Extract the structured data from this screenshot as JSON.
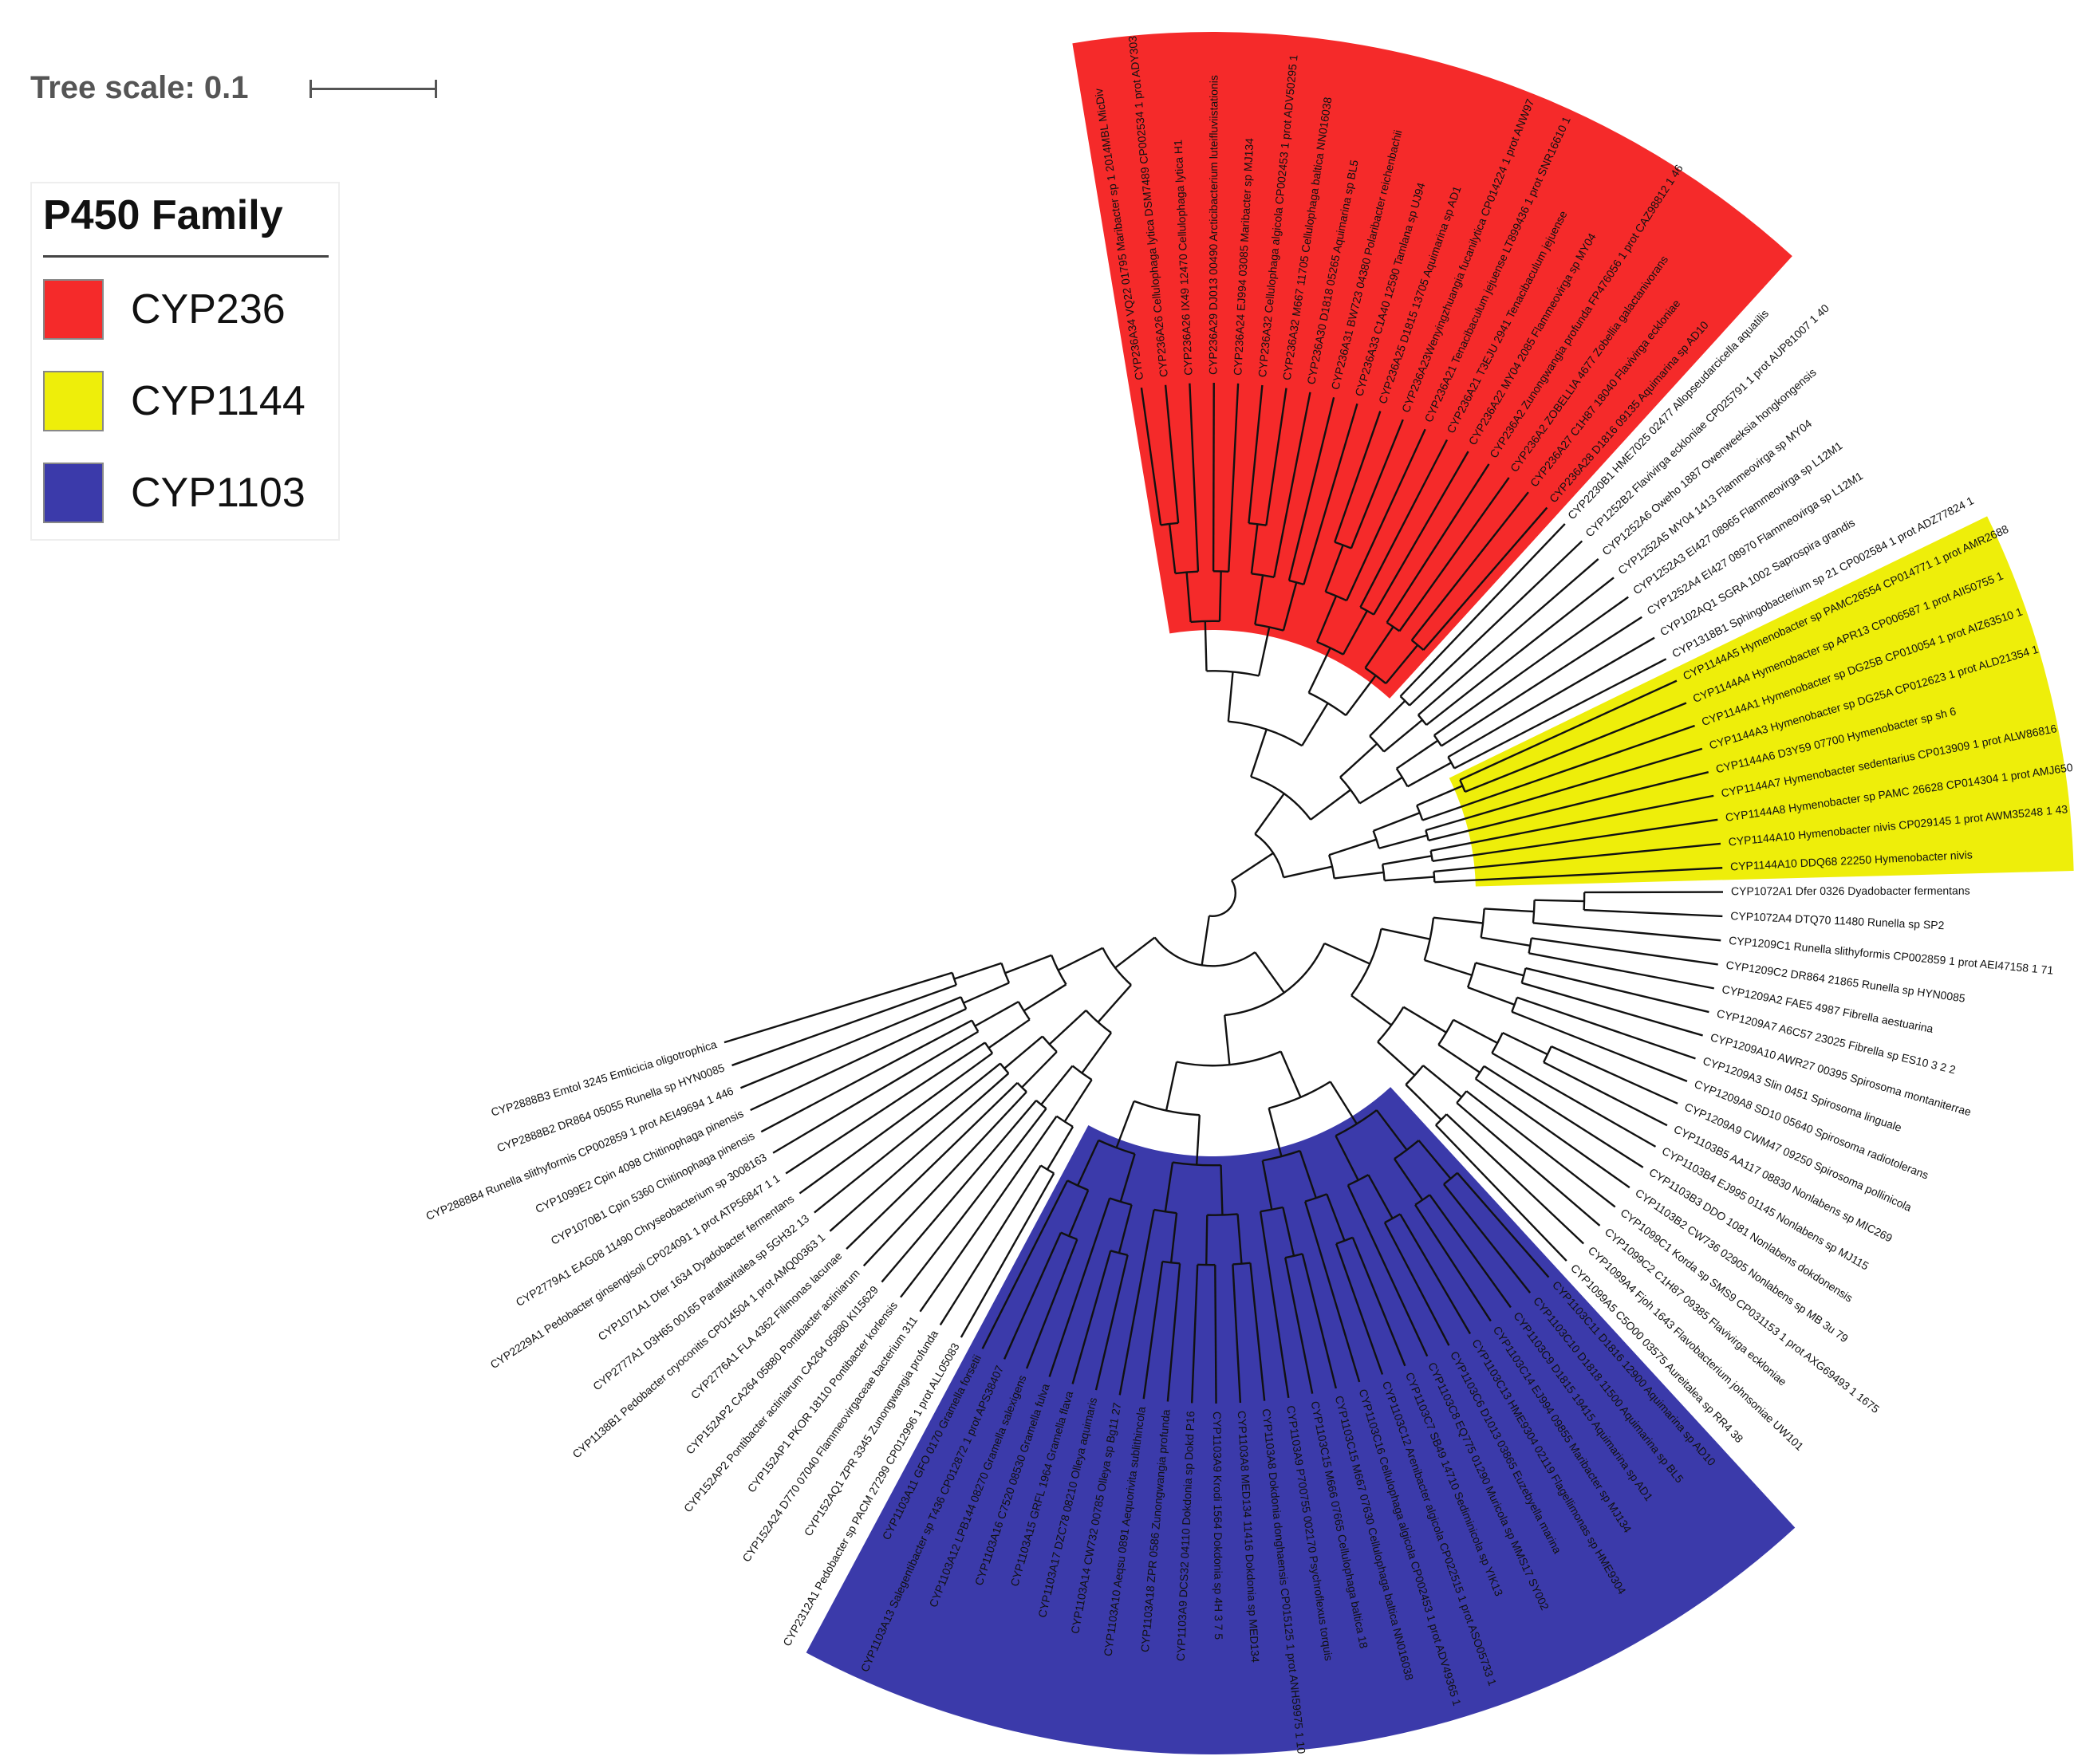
{
  "tree_scale": {
    "label": "Tree scale: 0.1"
  },
  "legend": {
    "title": "P450 Family",
    "items": [
      {
        "label": "CYP236",
        "color": "#f52a2a"
      },
      {
        "label": "CYP1144",
        "color": "#eeee0a"
      },
      {
        "label": "CYP1103",
        "color": "#3b3aaa"
      }
    ]
  },
  "tree": {
    "clades": [
      {
        "family": "CYP236",
        "color": "#f52a2a",
        "leaves": [
          "CYP236A34 VQ22 01795 Maribacter sp 1 2014MBL MicDiv",
          "CYP236A26 Cellulophaga lytica DSM7489 CP002534 1 prot ADY303",
          "CYP236A26 IX49 12470 Cellulophaga lytica H1",
          "CYP236A29 DJ013 00490 Arcticibacterium luteifluviistationis",
          "CYP236A24 EJ994 03085 Maribacter sp MJ134",
          "CYP236A32 Cellulophaga algicola CP002453 1 prot ADV50295 1",
          "CYP236A32 M667 11705 Cellulophaga baltica NN016038",
          "CYP236A30 D1818 05265 Aquimarina sp BL5",
          "CYP236A31 BW723 04380 Polaribacter reichenbachii",
          "CYP236A33 C1A40 12590 Tamlana sp UJ94",
          "CYP236A25 D1815 13705 Aquimarina sp AD1",
          "CYP236A23Wenyingzhuangia fucanilytica CP014224 1 prot ANW97",
          "CYP236A21 Tenacibaculum jejuense LT899436 1 prot SNR16610 1",
          "CYP236A21 T3EJU 2941 Tenacibaculum jejuense",
          "CYP236A22 MY04 2085 Flammeovirga sp MY04",
          "CYP236A2 Zunongwangia profunda FP476056 1 prot CAZ98812 1 46",
          "CYP236A2 ZOBELLIA 4677 Zobellia galactanivorans",
          "CYP236A27 C1H87 18040 Flavivirga eckloniae",
          "CYP236A28 D1816 09135 Aquimarina sp AD10"
        ]
      },
      {
        "family": "",
        "color": "",
        "leaves": [
          "CYP2230B1 HME7025 02477 Allopseudarcicella aquatilis",
          "CYP1252B2 Flavivirga eckloniae CP025791 1 prot AUP81007 1 40",
          "CYP1252A6 Oweho 1887 Owenweeksia hongkongensis",
          "CYP1252A5 MY04 1413 Flammeovirga sp MY04",
          "CYP1252A3 EI427 08965 Flammeovirga sp L12M1",
          "CYP1252A4 EI427 08970 Flammeovirga sp L12M1",
          "CYP102AQ1 SGRA 1002 Saprospira grandis",
          "CYP1318B1 Sphingobacterium sp 21 CP002584 1 prot ADZ77824 1"
        ]
      },
      {
        "family": "CYP1144",
        "color": "#eeee0a",
        "leaves": [
          "CYP1144A5 Hymenobacter sp PAMC26554 CP014771 1 prot AMR2688",
          "CYP1144A4 Hymenobacter sp APR13 CP006587 1 prot AII50755 1",
          "CYP1144A1 Hymenobacter sp DG25B CP010054 1 prot AIZ63510 1",
          "CYP1144A3 Hymenobacter sp DG25A CP012623 1 prot ALD21354 1",
          "CYP1144A6 D3Y59 07700 Hymenobacter sp sh 6",
          "CYP1144A7 Hymenobacter sedentarius CP013909 1 prot ALW86816",
          "CYP1144A8 Hymenobacter sp PAMC 26628 CP014304 1 prot AMJ650",
          "CYP1144A10 Hymenobacter nivis CP029145 1 prot AWM35248 1 43",
          "CYP1144A10 DDQ68 22250 Hymenobacter nivis"
        ]
      },
      {
        "family": "",
        "color": "",
        "leaves": [
          "CYP1072A1 Dfer 0326 Dyadobacter fermentans",
          "CYP1072A4 DTQ70 11480 Runella sp SP2",
          "CYP1209C1 Runella slithyformis CP002859 1 prot AEI47158 1 71",
          "CYP1209C2 DR864 21865 Runella sp HYN0085",
          "CYP1209A2 FAE5 4987 Fibrella aestuarina",
          "CYP1209A7 A6C57 23025 Fibrella sp ES10 3 2 2",
          "CYP1209A10 AWR27 00395 Spirosoma montaniterrae",
          "CYP1209A3 Slin 0451 Spirosoma linguale",
          "CYP1209A8 SD10 05640 Spirosoma radiotolerans",
          "CYP1209A9 CWM47 09250 Spirosoma pollinicola",
          "CYP1103B5 AA117 08830 Nonlabens sp MIC269",
          "CYP1103B4 EJ995 01145 Nonlabens sp MJ115",
          "CYP1103B3 DDO 1081 Nonlabens dokdonensis",
          "CYP1103B2 CW736 02905 Nonlabens sp MB 3u 79",
          "CYP1099C1 Korda sp SMS9 CP031153 1 prot AXG69493 1 1675",
          "CYP1099C2 C1H87 09385 Flavivirga eckloniae",
          "CYP1099A4 Fjoh 1643 Flavobacterium johnsoniae UW101",
          "CYP1099A5 C5O00 03575 Aureitalea sp RR4 38"
        ]
      },
      {
        "family": "CYP1103",
        "color": "#3b3aaa",
        "leaves": [
          "CYP1103C11 D1816 12900 Aquimarina sp AD10",
          "CYP1103C10 D1818 11500 Aquimarina sp BL5",
          "CYP1103C9 D1815 19415 Aquimarina sp AD1",
          "CYP1103C14 EJ994 09855 Maribacter sp MJ134",
          "CYP1103C13 HME9304 02119 Flagellimonas sp HME9304",
          "CYP1103C6 D1013 03865 Euzebyella marina",
          "CYP1103C8 EQ775 01290 Muricola sp MMS17 SY002",
          "CYP1103C7 SB49 14710 Sediminicola sp YIK13",
          "CYP1103C12 Arenibacter algicola CP022515 1 prot ASO05733 1",
          "CYP1103C16 Cellulophaga algicola CP002453 1 prot ADV49365 1",
          "CYP1103C15 M667 07630 Cellulophaga baltica NN016038",
          "CYP1103C15 M666 07665 Cellulophaga baltica 18",
          "CYP1103A9 P700755 002170 Psychroflexus torquis",
          "CYP1103A8 Dokdonia donghaensis CP015125 1 prot ANH59975 1 10",
          "CYP1103A8 MED134 11416 Dokdonia sp MED134",
          "CYP1103A9 Krodi 1564 Dokdonia sp 4H 3 7 5",
          "CYP1103A9 DCS32 04110 Dokdonia sp Dokd P16",
          "CYP1103A18 ZPR 0586 Zunongwangia profunda",
          "CYP1103A10 Aeqsu 0891 Aequorivita sublithincola",
          "CYP1103A14 CW732 00785 Olleya sp Bg11 27",
          "CYP1103A17 DZC78 08210 Olleya aquimaris",
          "CYP1103A15 GRFL 1964 Gramella flava",
          "CYP1103A16 C7520 08530 Gramella fulva",
          "CYP1103A12 LPB144 08270 Gramella salexigens",
          "CYP1103A13 Salegentibacter sp T436 CP012872 1 prot APS38407",
          "CYP1103A11 GFO 0170 Gramella forsetii"
        ]
      },
      {
        "family": "",
        "color": "",
        "leaves": [
          "CYP2312A1 Pedobacter sp PACM 27299 CP012996 1 prot ALL05083",
          "CYP152AQ1 ZPR 3345 Zunongwangia profunda",
          "CYP152A24 D770 07040 Flammeovirgaceae bacterium 311",
          "CYP152AP1 PKOR 18110 Pontibacter korlensis",
          "CYP152AP2 Pontibacter actiniarum CA264 05880 KI15629",
          "CYP152AP2 CA264 05880 Pontibacter actiniarum",
          "CYP2776A1 FLA 4362 Filimonas lacunae",
          "CYP1138B1 Pedobacter cryoconitis CP014504 1 prot AMQ00363 1",
          "CYP2777A1 D3H65 00165 Paraflavitalea sp 5GH32 13",
          "CYP1071A1 Dfer 1634 Dyadobacter fermentans",
          "CYP2229A1 Pedobacter ginsengisoli CP024091 1 prot ATP56847 1 1",
          "CYP2779A1 EAG08 11490 Chryseobacterium sp 3008163",
          "CYP1070B1 Cpin 5360 Chitinophaga pinensis",
          "CYP1099E2 Cpin 4098 Chitinophaga pinensis",
          "CYP2888B4 Runella slithyformis CP002859 1 prot AEI49694 1 446",
          "CYP2888B2 DR864 05055 Runella sp HYN0085",
          "CYP2888B3 Emtol 3245 Emticicia oligotrophica"
        ]
      }
    ]
  }
}
